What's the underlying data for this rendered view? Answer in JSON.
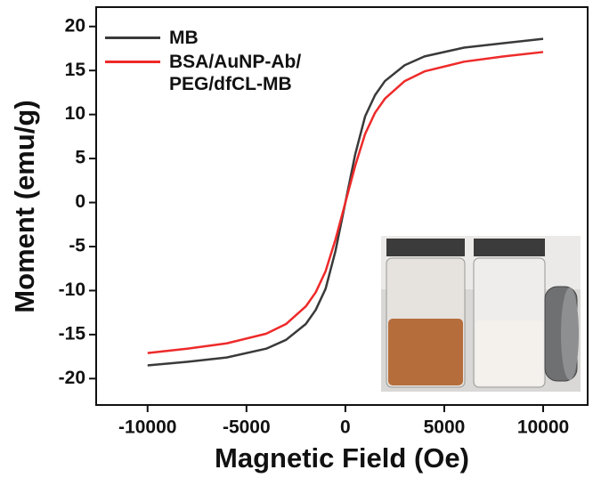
{
  "chart_data": {
    "type": "line",
    "x_label": "Magnetic Field (Oe)",
    "y_label": "Moment (emu/g)",
    "x": [
      -10000,
      -8000,
      -6000,
      -4000,
      -3000,
      -2000,
      -1500,
      -1000,
      -500,
      0,
      500,
      1000,
      1500,
      2000,
      3000,
      4000,
      6000,
      8000,
      10000
    ],
    "series": [
      {
        "name": "MB",
        "color": "#3a3a3a",
        "values": [
          -18.5,
          -18.1,
          -17.6,
          -16.6,
          -15.6,
          -13.8,
          -12.2,
          -9.8,
          -5.5,
          0,
          5.5,
          9.8,
          12.2,
          13.8,
          15.6,
          16.6,
          17.6,
          18.1,
          18.6
        ]
      },
      {
        "name": "BSA/AuNP-Ab/\nPEG/dfCL-MB",
        "color": "#ee2a2a",
        "values": [
          -17.1,
          -16.6,
          -16.0,
          -14.9,
          -13.8,
          -11.8,
          -10.2,
          -7.8,
          -4.2,
          0,
          4.2,
          7.8,
          10.2,
          11.8,
          13.8,
          14.9,
          16.0,
          16.6,
          17.1
        ]
      }
    ],
    "xlim": [
      -12600,
      12250
    ],
    "ylim": [
      -23,
      22.2
    ],
    "xticks": [
      -10000,
      -5000,
      0,
      5000,
      10000
    ],
    "yticks": [
      -20,
      -15,
      -10,
      -5,
      0,
      5,
      10,
      15,
      20
    ],
    "grid": false
  }
}
